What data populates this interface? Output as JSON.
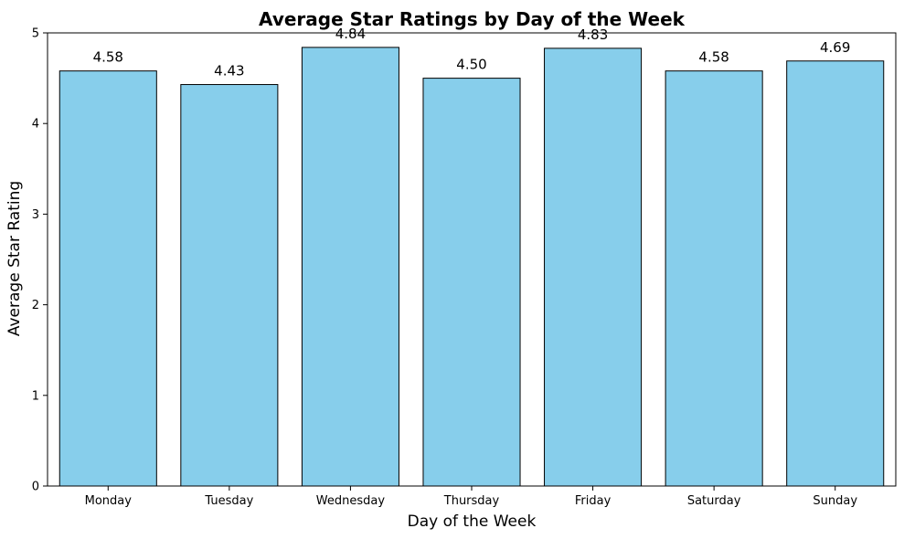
{
  "chart_data": {
    "type": "bar",
    "title": "Average Star Ratings by Day of the Week",
    "xlabel": "Day of the Week",
    "ylabel": "Average Star Rating",
    "categories": [
      "Monday",
      "Tuesday",
      "Wednesday",
      "Thursday",
      "Friday",
      "Saturday",
      "Sunday"
    ],
    "values": [
      4.58,
      4.43,
      4.84,
      4.5,
      4.83,
      4.58,
      4.69
    ],
    "value_labels": [
      "4.58",
      "4.43",
      "4.84",
      "4.50",
      "4.83",
      "4.58",
      "4.69"
    ],
    "ylim": [
      0,
      5
    ],
    "yticks": [
      0,
      1,
      2,
      3,
      4,
      5
    ],
    "ytick_labels": [
      "0",
      "1",
      "2",
      "3",
      "4",
      "5"
    ],
    "grid": false,
    "legend": null,
    "bar_color": "#87CEEB",
    "edge_color": "#000000"
  }
}
